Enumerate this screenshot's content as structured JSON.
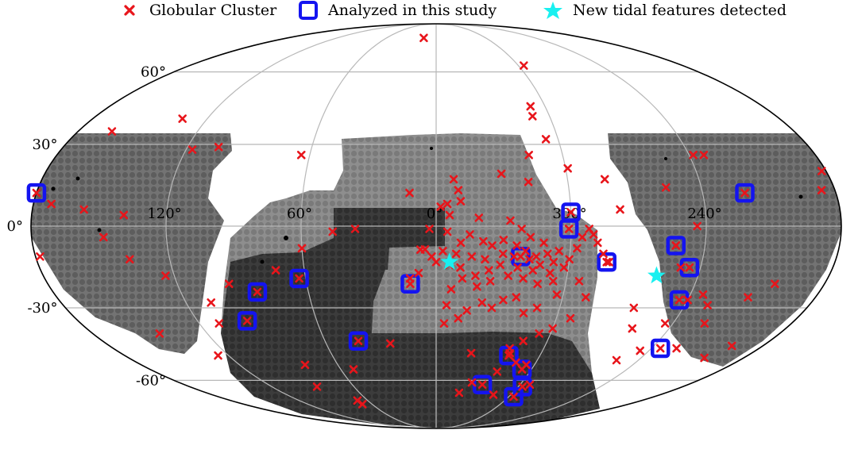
{
  "chart_data": {
    "type": "scatter",
    "projection": "mollweide",
    "legend": [
      {
        "label": "Globular Cluster",
        "marker": "x",
        "color": "#e8151b"
      },
      {
        "label": "Analyzed in this study",
        "marker": "square-open",
        "color": "#1414f0"
      },
      {
        "label": "New tidal features detected",
        "marker": "star",
        "color": "#19f0f0"
      }
    ],
    "lon_ticks": [
      {
        "label": "120°",
        "lon": 120
      },
      {
        "label": "60°",
        "lon": 60
      },
      {
        "label": "0°",
        "lon": 0
      },
      {
        "label": "300°",
        "lon": 300
      },
      {
        "label": "240°",
        "lon": 240
      }
    ],
    "lat_ticks": [
      {
        "label": "60°",
        "lat": 60
      },
      {
        "label": "30°",
        "lat": 30
      },
      {
        "label": "0°",
        "lat": 0
      },
      {
        "label": "-30°",
        "lat": -30
      },
      {
        "label": "-60°",
        "lat": -60
      }
    ],
    "grid": true,
    "legend_position": "top",
    "colors": {
      "globular_cluster": "#e8151b",
      "analyzed": "#1414f0",
      "tidal": "#19f0f0",
      "grid": "#b8b8b8",
      "footprint": "#6e6e6e"
    },
    "series": [
      {
        "name": "Globular Cluster",
        "points": [
          [
            5,
            -8.4
          ],
          [
            7,
            -8.5
          ],
          [
            335,
            -7
          ],
          [
            324,
            -7
          ],
          [
            349,
            -6
          ],
          [
            339,
            -5.5
          ],
          [
            330,
            -5
          ],
          [
            312,
            -6
          ],
          [
            318,
            -4
          ],
          [
            345,
            -3
          ],
          [
            355,
            -2
          ],
          [
            3,
            -1
          ],
          [
            322,
            -1
          ],
          [
            327,
            2
          ],
          [
            341,
            3
          ],
          [
            354,
            4
          ],
          [
            305,
            -9
          ],
          [
            310,
            -10
          ],
          [
            315,
            -11
          ],
          [
            320,
            -9
          ],
          [
            300,
            -12
          ],
          [
            307,
            -13
          ],
          [
            313,
            -14
          ],
          [
            318,
            -12
          ],
          [
            325,
            -11
          ],
          [
            330,
            -10
          ],
          [
            338,
            -12
          ],
          [
            344,
            -11
          ],
          [
            351,
            -10
          ],
          [
            357,
            -9
          ],
          [
            2,
            -11
          ],
          [
            302,
            -15
          ],
          [
            308,
            -17
          ],
          [
            316,
            -16
          ],
          [
            323,
            -15
          ],
          [
            331,
            -14
          ],
          [
            336,
            -16
          ],
          [
            342,
            -18
          ],
          [
            349,
            -15
          ],
          [
            354,
            -14
          ],
          [
            0,
            -13
          ],
          [
            306,
            -20
          ],
          [
            313,
            -21
          ],
          [
            320,
            -19
          ],
          [
            327,
            -18
          ],
          [
            335,
            -20
          ],
          [
            341,
            -22
          ],
          [
            348,
            -19
          ],
          [
            353,
            -23
          ],
          [
            8,
            -17
          ],
          [
            12,
            -19
          ],
          [
            297,
            -8
          ],
          [
            295,
            -4
          ],
          [
            292,
            -1
          ],
          [
            290,
            -3
          ],
          [
            288,
            -6
          ],
          [
            301,
            -1
          ],
          [
            285,
            -10
          ],
          [
            282,
            -13
          ],
          [
            278,
            6
          ],
          [
            283,
            17
          ],
          [
            306,
            32
          ],
          [
            309,
            41
          ],
          [
            308,
            45
          ],
          [
            296,
            63
          ],
          [
            330,
            19
          ],
          [
            318,
            16
          ],
          [
            316,
            26
          ],
          [
            299,
            21
          ],
          [
            352,
            17
          ],
          [
            350,
            13
          ],
          [
            349,
            9
          ],
          [
            355,
            8
          ],
          [
            358,
            7
          ],
          [
            322,
            -26
          ],
          [
            328,
            -27
          ],
          [
            333,
            -30
          ],
          [
            338,
            -28
          ],
          [
            345,
            -31
          ],
          [
            349,
            -34
          ],
          [
            356,
            -36
          ],
          [
            311,
            -30
          ],
          [
            317,
            -32
          ],
          [
            303,
            -25
          ],
          [
            294,
            -20
          ],
          [
            289,
            -26
          ],
          [
            293,
            -34
          ],
          [
            300,
            -38
          ],
          [
            306,
            -40
          ],
          [
            313,
            -43
          ],
          [
            319,
            -46
          ],
          [
            312,
            -52
          ],
          [
            321,
            -56
          ],
          [
            340,
            -48
          ],
          [
            233,
            26
          ],
          [
            238,
            26
          ],
          [
            256,
            14
          ],
          [
            244,
            0
          ],
          [
            253,
            -7
          ],
          [
            249,
            -15
          ],
          [
            234,
            -25
          ],
          [
            240,
            -27
          ],
          [
            229,
            -29
          ],
          [
            212,
            -26
          ],
          [
            203,
            -21
          ],
          [
            224,
            -36
          ],
          [
            244,
            -36
          ],
          [
            259,
            -38
          ],
          [
            264,
            -30
          ],
          [
            245,
            -47
          ],
          [
            253,
            -51
          ],
          [
            226,
            -46
          ],
          [
            203,
            -50
          ],
          [
            197,
            -45
          ],
          [
            163,
            35
          ],
          [
            133,
            40
          ],
          [
            105,
            29
          ],
          [
            64,
            26
          ],
          [
            15,
            78
          ],
          [
            117,
            28
          ],
          [
            96,
            -21
          ],
          [
            73,
            -16
          ],
          [
            60,
            -8
          ],
          [
            46,
            -2
          ],
          [
            36,
            -1
          ],
          [
            12,
            12
          ],
          [
            355,
            -29
          ],
          [
            25,
            -44
          ],
          [
            52,
            -55
          ],
          [
            110,
            -36
          ],
          [
            108,
            -28
          ],
          [
            124,
            -18
          ],
          [
            138,
            -12
          ],
          [
            139,
            4
          ],
          [
            148,
            -4
          ],
          [
            157,
            6
          ],
          [
            172,
            8
          ],
          [
            178,
            -11
          ],
          [
            182,
            20
          ],
          [
            186,
            13
          ],
          [
            145,
            -40
          ],
          [
            126,
            -49
          ],
          [
            69,
            -70
          ],
          [
            69,
            -72
          ],
          [
            87,
            -63
          ],
          [
            80,
            -53
          ],
          [
            342,
            -66
          ],
          [
            314,
            -67
          ],
          [
            293,
            -62
          ],
          [
            335,
            -61
          ],
          [
            318,
            -48
          ],
          [
            305,
            -53
          ]
        ]
      },
      {
        "name": "Analyzed in this study",
        "points": [
          [
            300,
            5
          ],
          [
            301,
            -1
          ],
          [
            283,
            -13
          ],
          [
            253,
            -7
          ],
          [
            245,
            -15
          ],
          [
            244,
            -27
          ],
          [
            180,
            12
          ],
          [
            221,
            12
          ],
          [
            235,
            -46
          ],
          [
            95,
            -35
          ],
          [
            84,
            -24
          ],
          [
            63,
            -19
          ],
          [
            42,
            -43
          ],
          [
            12,
            -21
          ],
          [
            322,
            -11
          ],
          [
            318,
            -49
          ],
          [
            306,
            -55
          ],
          [
            296,
            -68
          ],
          [
            297,
            -63
          ],
          [
            327,
            -62
          ]
        ]
      },
      {
        "name": "New tidal features detected",
        "points": [
          [
            354,
            -13
          ],
          [
            259,
            -18
          ]
        ]
      }
    ]
  }
}
